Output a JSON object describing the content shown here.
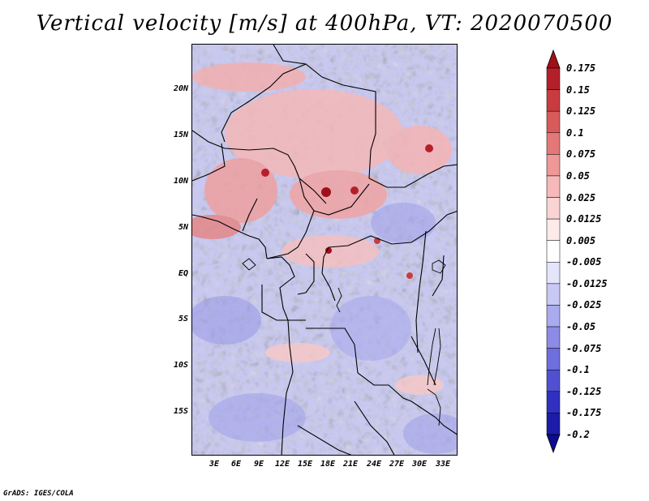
{
  "title": "Vertical velocity [m/s] at 400hPa, VT: 2020070500",
  "credit": "GrADS: IGES/COLA",
  "latitude_labels": [
    "20N",
    "15N",
    "10N",
    "5N",
    "EQ",
    "5S",
    "10S",
    "15S"
  ],
  "longitude_labels": [
    "3E",
    "6E",
    "9E",
    "12E",
    "15E",
    "18E",
    "21E",
    "24E",
    "27E",
    "30E",
    "33E"
  ],
  "colorbar": {
    "labels": [
      "0.175",
      "0.15",
      "0.125",
      "0.1",
      "0.075",
      "0.05",
      "0.025",
      "0.0125",
      "0.005",
      "-0.005",
      "-0.0125",
      "-0.025",
      "-0.05",
      "-0.075",
      "-0.1",
      "-0.125",
      "-0.175",
      "-0.2"
    ],
    "colors": [
      "#a01018",
      "#b4202a",
      "#c83c40",
      "#d85a5a",
      "#e47878",
      "#ee9898",
      "#f6b8b8",
      "#fad4d4",
      "#fdeaea",
      "#ffffff",
      "#e4e4fa",
      "#c8c8f4",
      "#aaaaee",
      "#8c8ce6",
      "#6e6ede",
      "#5050d0",
      "#3030c0",
      "#1c1ca8",
      "#0c0c90"
    ]
  }
}
